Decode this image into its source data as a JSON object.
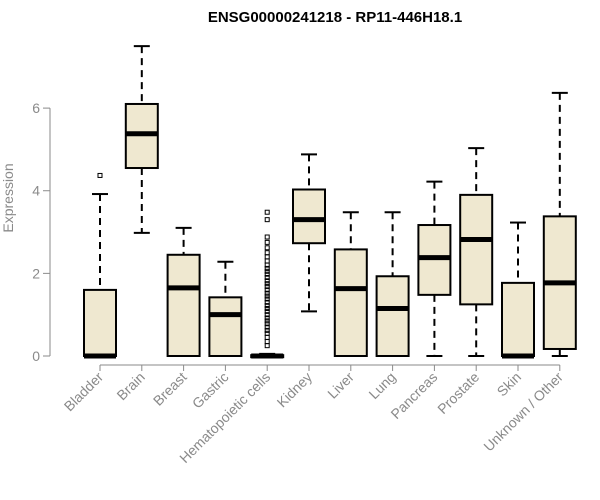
{
  "chart_data": {
    "type": "boxplot",
    "title": "ENSG00000241218 - RP11-446H18.1",
    "xlabel": "",
    "ylabel": "Expression",
    "ylim": [
      0,
      7.6
    ],
    "yticks": [
      0,
      2,
      4,
      6
    ],
    "box_fill": "#efe8d0",
    "box_stroke": "#000000",
    "axis_color": "#8a8a8a",
    "categories": [
      "Bladder",
      "Brain",
      "Breast",
      "Gastric",
      "Hematopoietic cells",
      "Kidney",
      "Liver",
      "Lung",
      "Pancreas",
      "Prostate",
      "Skin",
      "Unknown / Other"
    ],
    "boxes": [
      {
        "q1": 0,
        "median": 0,
        "q3": 1.6,
        "whisker_low": 0,
        "whisker_high": 3.92,
        "outliers": [
          4.37
        ]
      },
      {
        "q1": 4.55,
        "median": 5.38,
        "q3": 6.1,
        "whisker_low": 2.98,
        "whisker_high": 7.5,
        "outliers": []
      },
      {
        "q1": 0,
        "median": 1.65,
        "q3": 2.45,
        "whisker_low": 0,
        "whisker_high": 3.1,
        "outliers": []
      },
      {
        "q1": 0,
        "median": 1.0,
        "q3": 1.42,
        "whisker_low": 0,
        "whisker_high": 2.28,
        "outliers": []
      },
      {
        "q1": 0,
        "median": 0,
        "q3": 0.02,
        "whisker_low": 0,
        "whisker_high": 0.05,
        "outliers": [
          0.25,
          0.35,
          0.45,
          0.55,
          0.62,
          0.7,
          0.78,
          0.85,
          0.92,
          1.0,
          1.08,
          1.15,
          1.22,
          1.3,
          1.38,
          1.45,
          1.52,
          1.6,
          1.68,
          1.75,
          1.82,
          1.9,
          1.98,
          2.05,
          2.12,
          2.2,
          2.3,
          2.4,
          2.5,
          2.62,
          2.75,
          2.88,
          3.3,
          3.48
        ]
      },
      {
        "q1": 2.73,
        "median": 3.3,
        "q3": 4.03,
        "whisker_low": 1.08,
        "whisker_high": 4.88,
        "outliers": []
      },
      {
        "q1": 0,
        "median": 1.63,
        "q3": 2.58,
        "whisker_low": 0,
        "whisker_high": 3.48,
        "outliers": []
      },
      {
        "q1": 0,
        "median": 1.15,
        "q3": 1.93,
        "whisker_low": 0,
        "whisker_high": 3.48,
        "outliers": []
      },
      {
        "q1": 1.48,
        "median": 2.38,
        "q3": 3.17,
        "whisker_low": 0,
        "whisker_high": 4.22,
        "outliers": []
      },
      {
        "q1": 1.25,
        "median": 2.82,
        "q3": 3.9,
        "whisker_low": 0,
        "whisker_high": 5.03,
        "outliers": []
      },
      {
        "q1": 0,
        "median": 0,
        "q3": 1.77,
        "whisker_low": 0,
        "whisker_high": 3.23,
        "outliers": []
      },
      {
        "q1": 0.17,
        "median": 1.77,
        "q3": 3.38,
        "whisker_low": 0,
        "whisker_high": 6.37,
        "outliers": []
      }
    ]
  }
}
